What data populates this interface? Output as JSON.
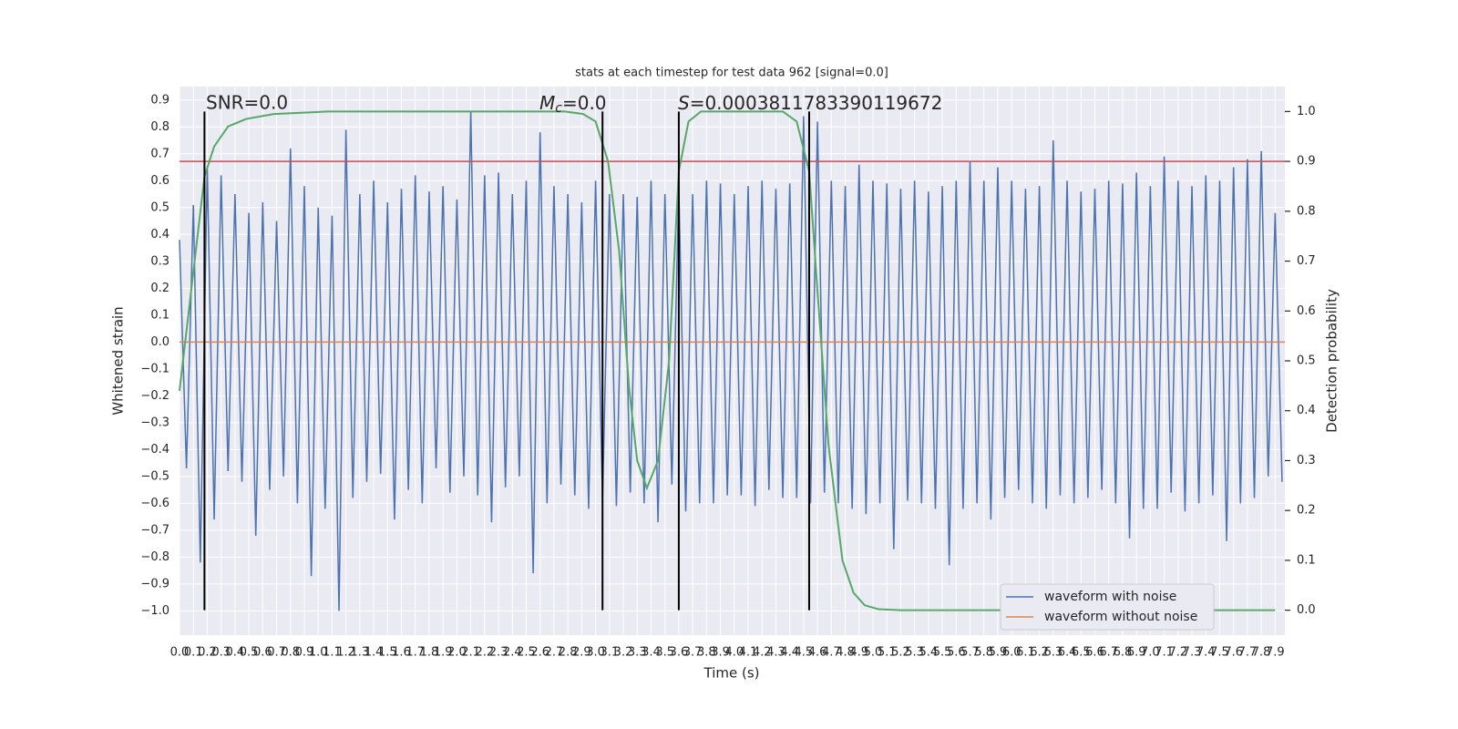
{
  "chart_data": {
    "type": "line",
    "title": "stats at each timestep for test data 962 [signal=0.0]",
    "xlabel": "Time (s)",
    "ylabel": "Whitened strain",
    "y2label": "Detection probability",
    "xlim": [
      0,
      7.97
    ],
    "ylim": [
      -1.09,
      0.95
    ],
    "y2lim": [
      -0.05,
      1.05
    ],
    "grid": true,
    "legend": "lower right",
    "xticks": [
      {
        "value": 0,
        "label": "0.0"
      },
      0.1,
      0.2,
      0.3,
      0.4,
      0.5,
      0.6,
      0.7,
      0.8,
      0.9,
      {
        "value": 1,
        "label": "1.0"
      },
      1.1,
      1.2,
      1.3,
      1.4,
      1.5,
      1.6,
      1.7,
      1.8,
      1.9,
      {
        "value": 2,
        "label": "2.0"
      },
      2.1,
      2.2,
      2.3,
      2.4,
      2.5,
      2.6,
      2.7,
      2.8,
      2.9,
      {
        "value": 3,
        "label": "3.0"
      },
      3.1,
      3.2,
      3.3,
      3.4,
      3.5,
      3.6,
      3.7,
      3.8,
      3.9,
      {
        "value": 4,
        "label": "4.0"
      },
      4.1,
      4.2,
      4.3,
      4.4,
      4.5,
      4.6,
      4.7,
      4.8,
      4.9,
      {
        "value": 5,
        "label": "5.0"
      },
      5.1,
      5.2,
      5.3,
      5.4,
      5.5,
      5.6,
      5.7,
      5.8,
      5.9,
      {
        "value": 6,
        "label": "6.0"
      },
      6.1,
      6.2,
      6.3,
      6.4,
      6.5,
      6.6,
      6.7,
      6.8,
      6.9,
      {
        "value": 7,
        "label": "7.0"
      },
      7.1,
      7.2,
      7.3,
      7.4,
      7.5,
      7.6,
      7.7,
      7.8,
      7.9
    ],
    "yticks": [
      {
        "value": -1,
        "label": "−1.0"
      },
      {
        "value": -0.9,
        "label": "−0.9"
      },
      {
        "value": -0.8,
        "label": "−0.8"
      },
      {
        "value": -0.7,
        "label": "−0.7"
      },
      {
        "value": -0.6,
        "label": "−0.6"
      },
      {
        "value": -0.5,
        "label": "−0.5"
      },
      {
        "value": -0.4,
        "label": "−0.4"
      },
      {
        "value": -0.3,
        "label": "−0.3"
      },
      {
        "value": -0.2,
        "label": "−0.2"
      },
      {
        "value": -0.1,
        "label": "−0.1"
      },
      {
        "value": 0,
        "label": "0.0"
      },
      0.1,
      0.2,
      0.3,
      0.4,
      0.5,
      0.6,
      0.7,
      0.8,
      0.9
    ],
    "y2ticks": [
      {
        "value": 0,
        "label": "0.0"
      },
      0.1,
      0.2,
      0.3,
      0.4,
      0.5,
      0.6,
      0.7,
      0.8,
      0.9,
      {
        "value": 1,
        "label": "1.0"
      }
    ],
    "series": [
      {
        "name": "waveform with noise",
        "color": "#4c72b0",
        "x": [
          0,
          0.05,
          0.1,
          0.15,
          0.2,
          0.25,
          0.3,
          0.35,
          0.4,
          0.45,
          0.5,
          0.55,
          0.6,
          0.65,
          0.7,
          0.75,
          0.8,
          0.85,
          0.9,
          0.95,
          1,
          1.05,
          1.1,
          1.15,
          1.2,
          1.25,
          1.3,
          1.35,
          1.4,
          1.45,
          1.5,
          1.55,
          1.6,
          1.65,
          1.7,
          1.75,
          1.8,
          1.85,
          1.9,
          1.95,
          2,
          2.05,
          2.1,
          2.15,
          2.2,
          2.25,
          2.3,
          2.35,
          2.4,
          2.45,
          2.5,
          2.55,
          2.6,
          2.65,
          2.7,
          2.75,
          2.8,
          2.85,
          2.9,
          2.95,
          3,
          3.05,
          3.1,
          3.15,
          3.2,
          3.25,
          3.3,
          3.35,
          3.4,
          3.45,
          3.5,
          3.55,
          3.6,
          3.65,
          3.7,
          3.75,
          3.8,
          3.85,
          3.9,
          3.95,
          4,
          4.05,
          4.1,
          4.15,
          4.2,
          4.25,
          4.3,
          4.35,
          4.4,
          4.45,
          4.5,
          4.55,
          4.6,
          4.65,
          4.7,
          4.75,
          4.8,
          4.85,
          4.9,
          4.95,
          5,
          5.05,
          5.1,
          5.15,
          5.2,
          5.25,
          5.3,
          5.35,
          5.4,
          5.45,
          5.5,
          5.55,
          5.6,
          5.65,
          5.7,
          5.75,
          5.8,
          5.85,
          5.9,
          5.95,
          6,
          6.05,
          6.1,
          6.15,
          6.2,
          6.25,
          6.3,
          6.35,
          6.4,
          6.45,
          6.5,
          6.55,
          6.6,
          6.65,
          6.7,
          6.75,
          6.8,
          6.85,
          6.9,
          6.95,
          7,
          7.05,
          7.1,
          7.15,
          7.2,
          7.25,
          7.3,
          7.35,
          7.4,
          7.45,
          7.5,
          7.55,
          7.6,
          7.65,
          7.7,
          7.75,
          7.8,
          7.85,
          7.9,
          7.95
        ],
        "values": [
          0.38,
          -0.47,
          0.51,
          -0.82,
          0.65,
          -0.66,
          0.62,
          -0.48,
          0.55,
          -0.52,
          0.48,
          -0.72,
          0.52,
          -0.55,
          0.45,
          -0.5,
          0.72,
          -0.6,
          0.58,
          -0.87,
          0.5,
          -0.62,
          0.47,
          -1.0,
          0.79,
          -0.58,
          0.55,
          -0.52,
          0.6,
          -0.49,
          0.52,
          -0.66,
          0.57,
          -0.55,
          0.62,
          -0.6,
          0.56,
          -0.47,
          0.58,
          -0.56,
          0.53,
          -0.5,
          0.86,
          -0.57,
          0.62,
          -0.67,
          0.63,
          -0.54,
          0.55,
          -0.5,
          0.6,
          -0.86,
          0.78,
          -0.6,
          0.58,
          -0.53,
          0.55,
          -0.57,
          0.52,
          -0.62,
          0.6,
          -0.59,
          0.55,
          -0.61,
          0.55,
          -0.56,
          0.54,
          -0.6,
          0.6,
          -0.67,
          0.55,
          -0.53,
          0.58,
          -0.63,
          0.55,
          -0.6,
          0.6,
          -0.6,
          0.59,
          -0.57,
          0.55,
          -0.57,
          0.58,
          -0.61,
          0.6,
          -0.55,
          0.57,
          -0.58,
          0.59,
          -0.58,
          0.84,
          -0.6,
          0.82,
          -0.56,
          0.6,
          -0.6,
          0.58,
          -0.62,
          0.66,
          -0.64,
          0.6,
          -0.6,
          0.59,
          -0.77,
          0.57,
          -0.59,
          0.6,
          -0.6,
          0.56,
          -0.62,
          0.58,
          -0.83,
          0.6,
          -0.62,
          0.67,
          -0.6,
          0.6,
          -0.66,
          0.65,
          -0.58,
          0.6,
          -0.55,
          0.57,
          -0.6,
          0.58,
          -0.62,
          0.75,
          -0.57,
          0.6,
          -0.6,
          0.56,
          -0.58,
          0.57,
          -0.55,
          0.6,
          -0.6,
          0.59,
          -0.73,
          0.63,
          -0.62,
          0.58,
          -0.62,
          0.69,
          -0.56,
          0.6,
          -0.63,
          0.58,
          -0.6,
          0.62,
          -0.57,
          0.6,
          -0.74,
          0.65,
          -0.6,
          0.68,
          -0.58,
          0.71,
          -0.5,
          0.48,
          -0.52
        ]
      },
      {
        "name": "waveform without noise",
        "color": "#dd8452",
        "x": [
          0,
          7.97
        ],
        "values": [
          0,
          0
        ]
      },
      {
        "color": "#55a868",
        "axis": "y2",
        "x": [
          0,
          0.18,
          0.25,
          0.35,
          0.48,
          0.68,
          1.07,
          2.78,
          2.91,
          3.0,
          3.09,
          3.17,
          3.24,
          3.3,
          3.37,
          3.45,
          3.53,
          3.6,
          3.67,
          3.76,
          4.35,
          4.45,
          4.54,
          4.6,
          4.68,
          4.78,
          4.86,
          4.94,
          5.04,
          5.2,
          7.9
        ],
        "values": [
          0.44,
          0.87,
          0.93,
          0.97,
          0.985,
          0.995,
          1.0,
          1.0,
          0.995,
          0.98,
          0.9,
          0.72,
          0.45,
          0.3,
          0.245,
          0.3,
          0.5,
          0.88,
          0.98,
          1.0,
          1.0,
          0.98,
          0.88,
          0.64,
          0.33,
          0.1,
          0.035,
          0.01,
          0.002,
          0.0,
          0.0
        ]
      }
    ],
    "hlines": {
      "values": [
        0.9
      ],
      "axis": "y2",
      "color": "#c44e52"
    },
    "vlines": {
      "x": [
        0.18,
        3.05,
        3.6,
        4.54
      ],
      "ymin": 0,
      "ymax": 1,
      "axis": "y2",
      "color": "#000000"
    },
    "annotations": {
      "snr": "SNR=0.0",
      "mc": {
        "symbol": "M",
        "sub": "c",
        "rest": "=0.0"
      },
      "s": {
        "symbol": "S",
        "rest": "=0.0003811783390119672"
      }
    }
  }
}
